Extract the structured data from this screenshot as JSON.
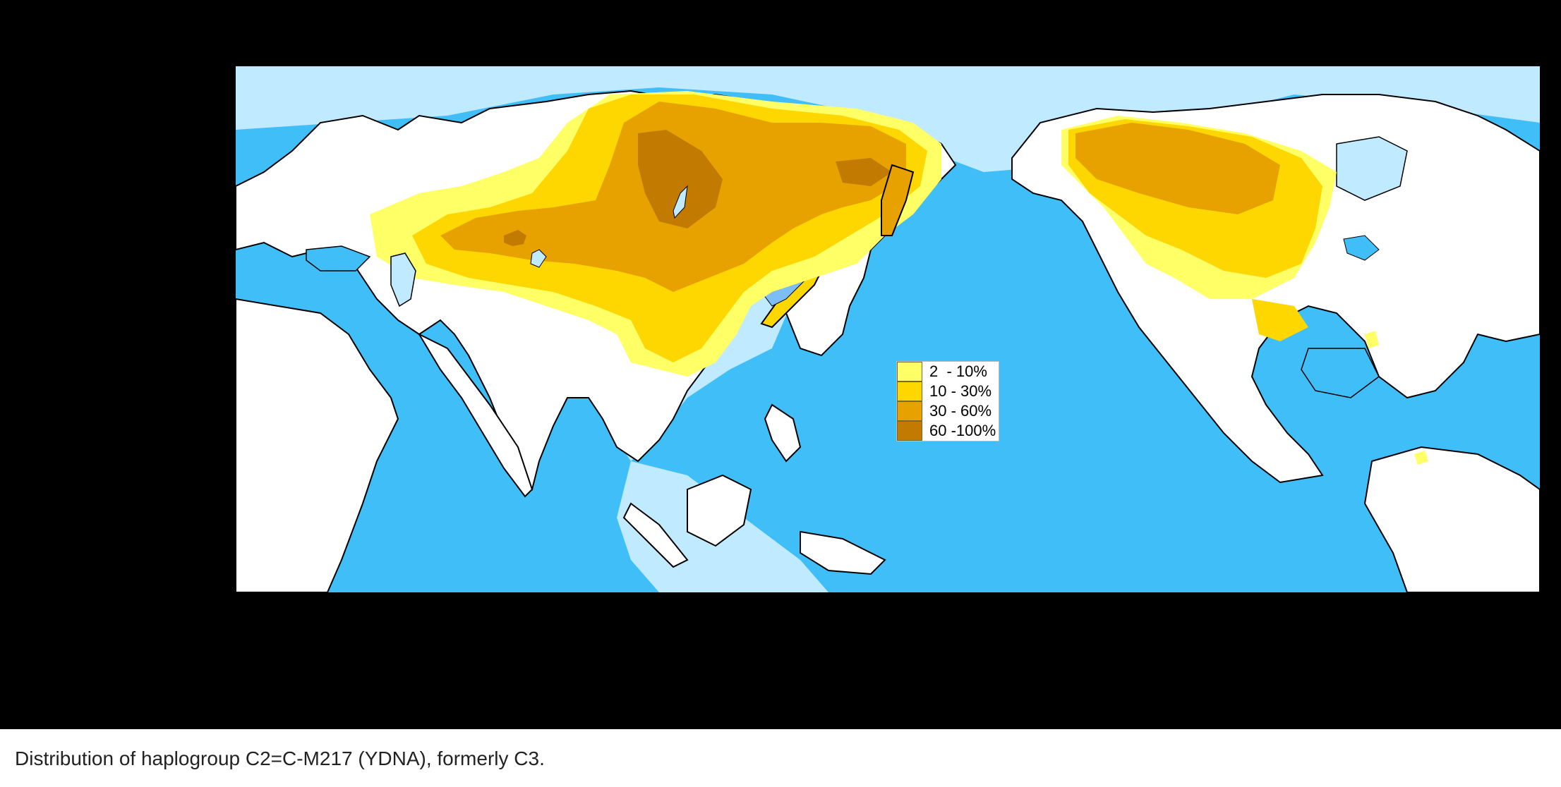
{
  "caption": "Distribution of haplogroup C2=C-M217 (YDNA), formerly C3.",
  "legend": {
    "items": [
      {
        "label": "2  - 10%",
        "color": "#ffff66"
      },
      {
        "label": "10 - 30%",
        "color": "#ffd700"
      },
      {
        "label": "30 - 60%",
        "color": "#e8a200"
      },
      {
        "label": "60 -100%",
        "color": "#c27a00"
      }
    ]
  },
  "colors": {
    "ocean": "#3fbef8",
    "shelf": "#bfeaff",
    "land": "#ffffff",
    "coast": "#000000",
    "background": "#000000"
  }
}
